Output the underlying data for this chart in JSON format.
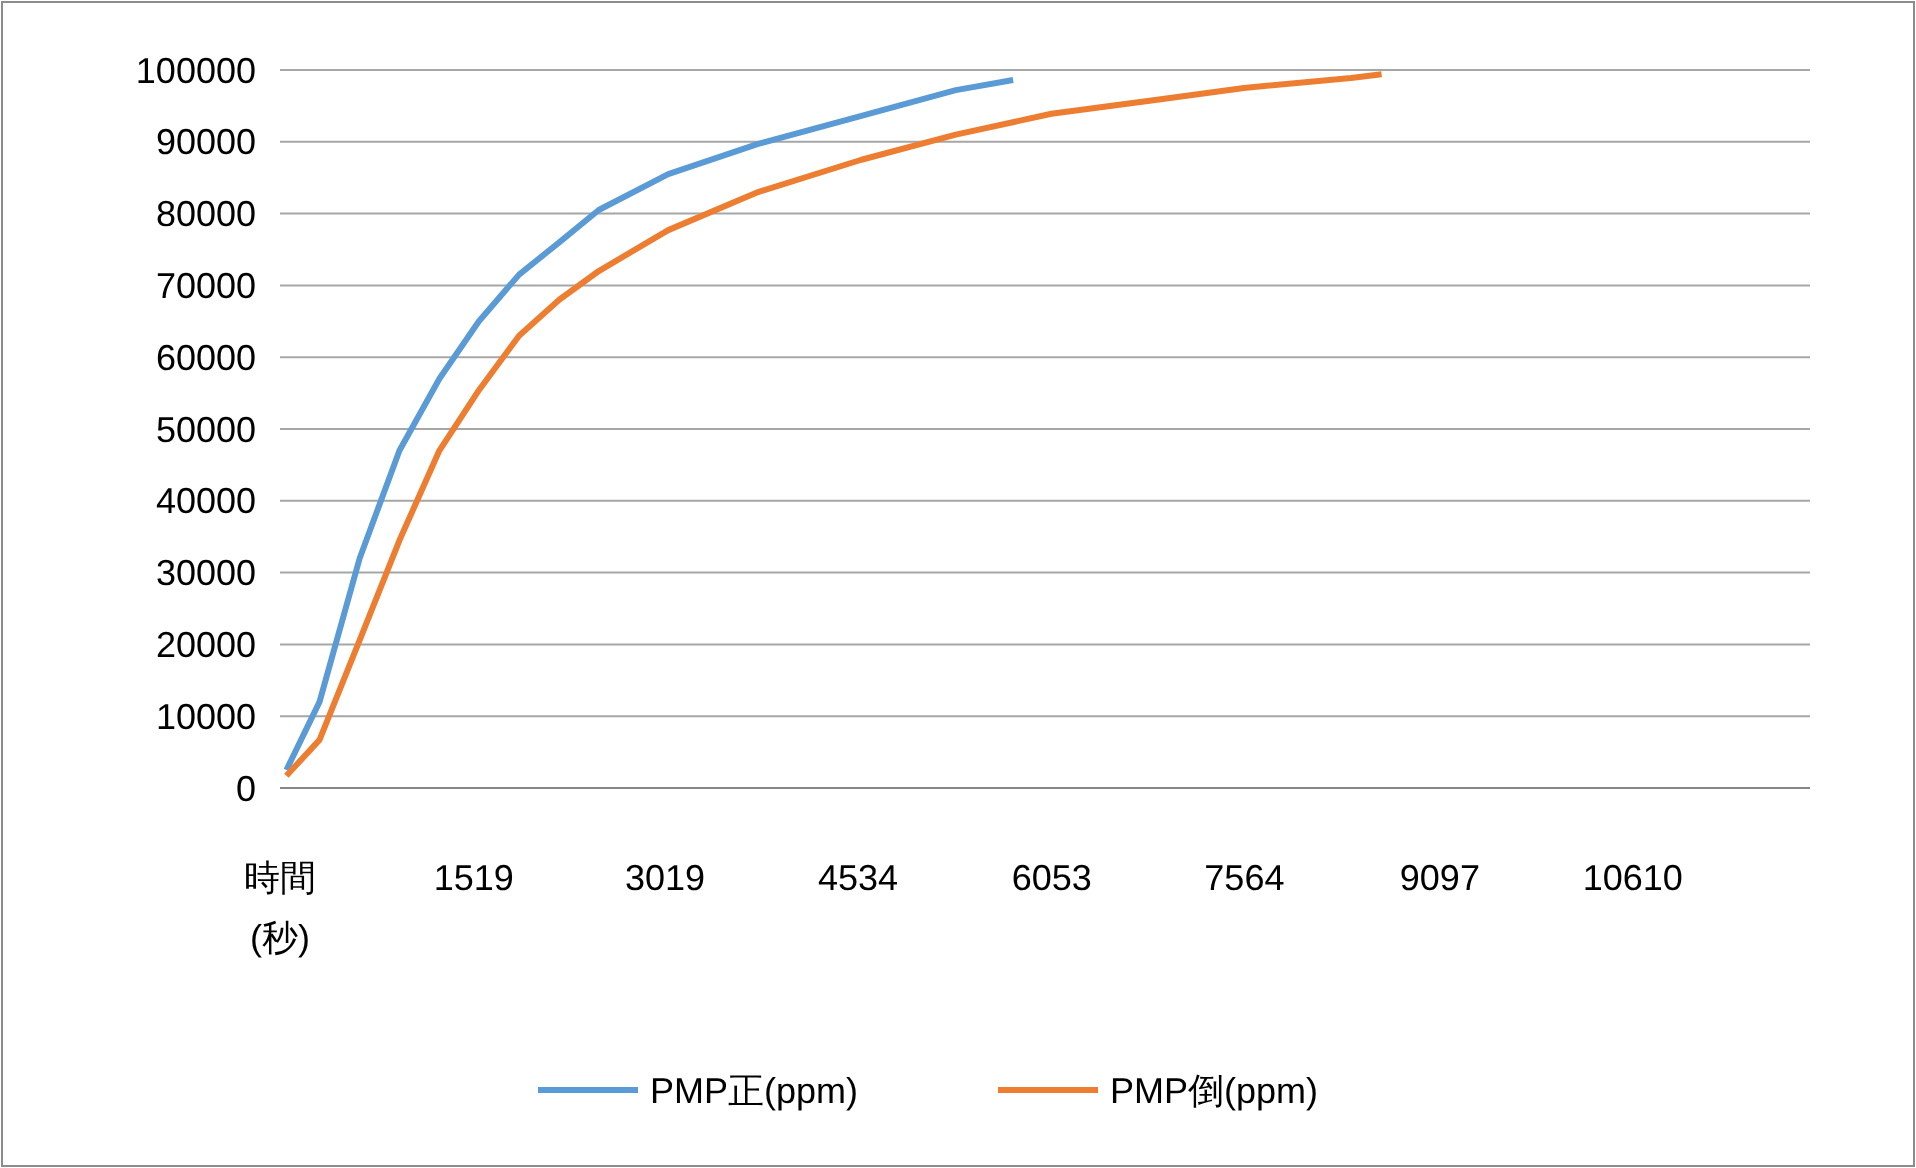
{
  "chart_data": {
    "type": "line",
    "xlabel": "時間(秒)",
    "xlim": [
      0,
      12000
    ],
    "xticks": [
      1519,
      3019,
      4534,
      6053,
      7564,
      9097,
      10610
    ],
    "ylim": [
      0,
      100000
    ],
    "yticks": [
      0,
      10000,
      20000,
      30000,
      40000,
      50000,
      60000,
      70000,
      80000,
      90000,
      100000
    ],
    "grid": "y",
    "legend": "bottom",
    "line_style": "solid",
    "series": [
      {
        "name": "PMP正(ppm)",
        "color": "#5b9bd5",
        "x": [
          50,
          310,
          625,
          937,
          1250,
          1560,
          1875,
          2190,
          2500,
          3045,
          3750,
          4560,
          5300,
          5750
        ],
        "values": [
          2500,
          12000,
          32000,
          47000,
          57000,
          65000,
          71500,
          76000,
          80500,
          85500,
          89700,
          93600,
          97200,
          98600
        ]
      },
      {
        "name": "PMP倒(ppm)",
        "color": "#ed7d31",
        "x": [
          50,
          310,
          625,
          937,
          1250,
          1560,
          1875,
          2190,
          2500,
          3045,
          3750,
          4560,
          5300,
          6050,
          6850,
          7560,
          8400,
          8640
        ],
        "values": [
          1700,
          6700,
          20600,
          34500,
          47000,
          55400,
          63000,
          68000,
          72000,
          77700,
          83000,
          87500,
          91000,
          93900,
          95800,
          97500,
          98900,
          99400
        ]
      }
    ]
  }
}
